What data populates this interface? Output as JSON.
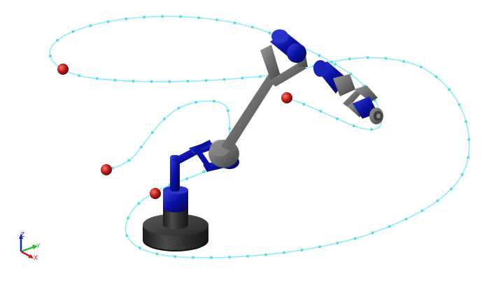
{
  "scene": {
    "background": "#ffffff",
    "trajectory_color": "#7fe8f0",
    "trajectory_dot_color": "#5fd8e8",
    "waypoint_color": "#c0201e",
    "arm_gray": "#6b6b6b",
    "arm_gray_dark": "#4a4a4a",
    "arm_blue": "#0a10a0",
    "arm_blue_dark": "#05085e",
    "base_color": "#2a2a2a",
    "waypoint_count": 4
  },
  "axes_triad": {
    "z_label": "Z",
    "y_label": "Y",
    "x_label": "X",
    "z_color": "#1a22c8",
    "y_color": "#2ab82a",
    "x_color": "#d01818",
    "icon": "xyz-axes-icon"
  }
}
